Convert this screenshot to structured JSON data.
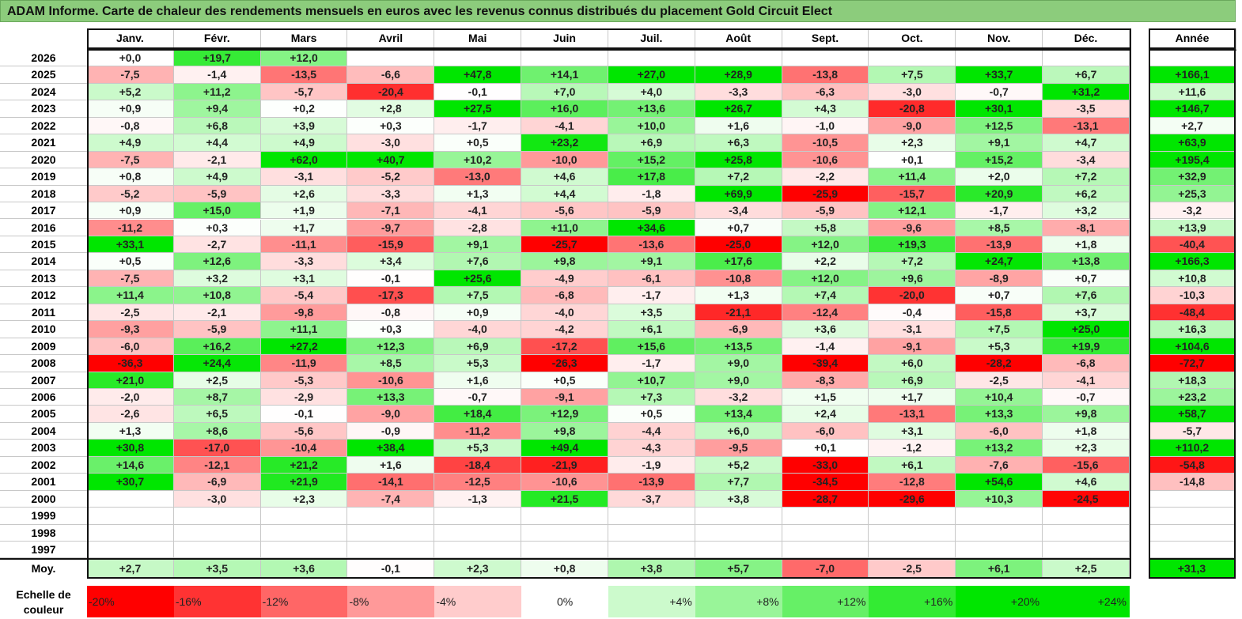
{
  "title": "ADAM Informe. Carte de chaleur des rendements mensuels en euros avec les revenus connus distribués du placement Gold Circuit Elect",
  "months": [
    "Janv.",
    "Févr.",
    "Mars",
    "Avril",
    "Mai",
    "Juin",
    "Juil.",
    "Août",
    "Sept.",
    "Oct.",
    "Nov.",
    "Déc."
  ],
  "year_header": "Année",
  "avg_label": "Moy.",
  "chart_data": {
    "type": "heatmap",
    "title": "ADAM Informe. Carte de chaleur des rendements mensuels en euros avec les revenus connus distribués du placement Gold Circuit Elect",
    "x_categories": [
      "Janv.",
      "Févr.",
      "Mars",
      "Avril",
      "Mai",
      "Juin",
      "Juil.",
      "Août",
      "Sept.",
      "Oct.",
      "Nov.",
      "Déc."
    ],
    "rows": [
      {
        "year": "2026",
        "m": [
          "+0,0",
          "+19,7",
          "+12,0",
          "",
          "",
          "",
          "",
          "",
          "",
          "",
          "",
          ""
        ],
        "annual": ""
      },
      {
        "year": "2025",
        "m": [
          "-7,5",
          "-1,4",
          "-13,5",
          "-6,6",
          "+47,8",
          "+14,1",
          "+27,0",
          "+28,9",
          "-13,8",
          "+7,5",
          "+33,7",
          "+6,7"
        ],
        "annual": "+166,1"
      },
      {
        "year": "2024",
        "m": [
          "+5,2",
          "+11,2",
          "-5,7",
          "-20,4",
          "-0,1",
          "+7,0",
          "+4,0",
          "-3,3",
          "-6,3",
          "-3,0",
          "-0,7",
          "+31,2"
        ],
        "annual": "+11,6"
      },
      {
        "year": "2023",
        "m": [
          "+0,9",
          "+9,4",
          "+0,2",
          "+2,8",
          "+27,5",
          "+16,0",
          "+13,6",
          "+26,7",
          "+4,3",
          "-20,8",
          "+30,1",
          "-3,5"
        ],
        "annual": "+146,7"
      },
      {
        "year": "2022",
        "m": [
          "-0,8",
          "+6,8",
          "+3,9",
          "+0,3",
          "-1,7",
          "-4,1",
          "+10,0",
          "+1,6",
          "-1,0",
          "-9,0",
          "+12,5",
          "-13,1"
        ],
        "annual": "+2,7"
      },
      {
        "year": "2021",
        "m": [
          "+4,9",
          "+4,4",
          "+4,9",
          "-3,0",
          "+0,5",
          "+23,2",
          "+6,9",
          "+6,3",
          "-10,5",
          "+2,3",
          "+9,1",
          "+4,7"
        ],
        "annual": "+63,9"
      },
      {
        "year": "2020",
        "m": [
          "-7,5",
          "-2,1",
          "+62,0",
          "+40,7",
          "+10,2",
          "-10,0",
          "+15,2",
          "+25,8",
          "-10,6",
          "+0,1",
          "+15,2",
          "-3,4"
        ],
        "annual": "+195,4"
      },
      {
        "year": "2019",
        "m": [
          "+0,8",
          "+4,9",
          "-3,1",
          "-5,2",
          "-13,0",
          "+4,6",
          "+17,8",
          "+7,2",
          "-2,2",
          "+11,4",
          "+2,0",
          "+7,2"
        ],
        "annual": "+32,9"
      },
      {
        "year": "2018",
        "m": [
          "-5,2",
          "-5,9",
          "+2,6",
          "-3,3",
          "+1,3",
          "+4,4",
          "-1,8",
          "+69,9",
          "-25,9",
          "-15,7",
          "+20,9",
          "+6,2"
        ],
        "annual": "+25,3"
      },
      {
        "year": "2017",
        "m": [
          "+0,9",
          "+15,0",
          "+1,9",
          "-7,1",
          "-4,1",
          "-5,6",
          "-5,9",
          "-3,4",
          "-5,9",
          "+12,1",
          "-1,7",
          "+3,2"
        ],
        "annual": "-3,2"
      },
      {
        "year": "2016",
        "m": [
          "-11,2",
          "+0,3",
          "+1,7",
          "-9,7",
          "-2,8",
          "+11,0",
          "+34,6",
          "+0,7",
          "+5,8",
          "-9,6",
          "+8,5",
          "-8,1"
        ],
        "annual": "+13,9"
      },
      {
        "year": "2015",
        "m": [
          "+33,1",
          "-2,7",
          "-11,1",
          "-15,9",
          "+9,1",
          "-25,7",
          "-13,6",
          "-25,0",
          "+12,0",
          "+19,3",
          "-13,9",
          "+1,8"
        ],
        "annual": "-40,4"
      },
      {
        "year": "2014",
        "m": [
          "+0,5",
          "+12,6",
          "-3,3",
          "+3,4",
          "+7,6",
          "+9,8",
          "+9,1",
          "+17,6",
          "+2,2",
          "+7,2",
          "+24,7",
          "+13,8"
        ],
        "annual": "+166,3"
      },
      {
        "year": "2013",
        "m": [
          "-7,5",
          "+3,2",
          "+3,1",
          "-0,1",
          "+25,6",
          "-4,9",
          "-6,1",
          "-10,8",
          "+12,0",
          "+9,6",
          "-8,9",
          "+0,7"
        ],
        "annual": "+10,8"
      },
      {
        "year": "2012",
        "m": [
          "+11,4",
          "+10,8",
          "-5,4",
          "-17,3",
          "+7,5",
          "-6,8",
          "-1,7",
          "+1,3",
          "+7,4",
          "-20,0",
          "+0,7",
          "+7,6"
        ],
        "annual": "-10,3"
      },
      {
        "year": "2011",
        "m": [
          "-2,5",
          "-2,1",
          "-9,8",
          "-0,8",
          "+0,9",
          "-4,0",
          "+3,5",
          "-21,1",
          "-12,4",
          "-0,4",
          "-15,8",
          "+3,7"
        ],
        "annual": "-48,4"
      },
      {
        "year": "2010",
        "m": [
          "-9,3",
          "-5,9",
          "+11,1",
          "+0,3",
          "-4,0",
          "-4,2",
          "+6,1",
          "-6,9",
          "+3,6",
          "-3,1",
          "+7,5",
          "+25,0"
        ],
        "annual": "+16,3"
      },
      {
        "year": "2009",
        "m": [
          "-6,0",
          "+16,2",
          "+27,2",
          "+12,3",
          "+6,9",
          "-17,2",
          "+15,6",
          "+13,5",
          "-1,4",
          "-9,1",
          "+5,3",
          "+19,9"
        ],
        "annual": "+104,6"
      },
      {
        "year": "2008",
        "m": [
          "-36,3",
          "+24,4",
          "-11,9",
          "+8,5",
          "+5,3",
          "-26,3",
          "-1,7",
          "+9,0",
          "-39,4",
          "+6,0",
          "-28,2",
          "-6,8"
        ],
        "annual": "-72,7"
      },
      {
        "year": "2007",
        "m": [
          "+21,0",
          "+2,5",
          "-5,3",
          "-10,6",
          "+1,6",
          "+0,5",
          "+10,7",
          "+9,0",
          "-8,3",
          "+6,9",
          "-2,5",
          "-4,1"
        ],
        "annual": "+18,3"
      },
      {
        "year": "2006",
        "m": [
          "-2,0",
          "+8,7",
          "-2,9",
          "+13,3",
          "-0,7",
          "-9,1",
          "+7,3",
          "-3,2",
          "+1,5",
          "+1,7",
          "+10,4",
          "-0,7"
        ],
        "annual": "+23,2"
      },
      {
        "year": "2005",
        "m": [
          "-2,6",
          "+6,5",
          "-0,1",
          "-9,0",
          "+18,4",
          "+12,9",
          "+0,5",
          "+13,4",
          "+2,4",
          "-13,1",
          "+13,3",
          "+9,8"
        ],
        "annual": "+58,7"
      },
      {
        "year": "2004",
        "m": [
          "+1,3",
          "+8,6",
          "-5,6",
          "-0,9",
          "-11,2",
          "+9,8",
          "-4,4",
          "+6,0",
          "-6,0",
          "+3,1",
          "-6,0",
          "+1,8"
        ],
        "annual": "-5,7"
      },
      {
        "year": "2003",
        "m": [
          "+30,8",
          "-17,0",
          "-10,4",
          "+38,4",
          "+5,3",
          "+49,4",
          "-4,3",
          "-9,5",
          "+0,1",
          "-1,2",
          "+13,2",
          "+2,3"
        ],
        "annual": "+110,2"
      },
      {
        "year": "2002",
        "m": [
          "+14,6",
          "-12,1",
          "+21,2",
          "+1,6",
          "-18,4",
          "-21,9",
          "-1,9",
          "+5,2",
          "-33,0",
          "+6,1",
          "-7,6",
          "-15,6"
        ],
        "annual": "-54,8"
      },
      {
        "year": "2001",
        "m": [
          "+30,7",
          "-6,9",
          "+21,9",
          "-14,1",
          "-12,5",
          "-10,6",
          "-13,9",
          "+7,7",
          "-34,5",
          "-12,8",
          "+54,6",
          "+4,6"
        ],
        "annual": "-14,8"
      },
      {
        "year": "2000",
        "m": [
          "",
          "-3,0",
          "+2,3",
          "-7,4",
          "-1,3",
          "+21,5",
          "-3,7",
          "+3,8",
          "-28,7",
          "-29,6",
          "+10,3",
          "-24,5"
        ],
        "annual": ""
      },
      {
        "year": "1999",
        "m": [
          "",
          "",
          "",
          "",
          "",
          "",
          "",
          "",
          "",
          "",
          "",
          ""
        ],
        "annual": ""
      },
      {
        "year": "1998",
        "m": [
          "",
          "",
          "",
          "",
          "",
          "",
          "",
          "",
          "",
          "",
          "",
          ""
        ],
        "annual": ""
      },
      {
        "year": "1997",
        "m": [
          "",
          "",
          "",
          "",
          "",
          "",
          "",
          "",
          "",
          "",
          "",
          ""
        ],
        "annual": ""
      }
    ],
    "averages": [
      "+2,7",
      "+3,5",
      "+3,6",
      "-0,1",
      "+2,3",
      "+0,8",
      "+3,8",
      "+5,7",
      "-7,0",
      "-2,5",
      "+6,1",
      "+2,5"
    ],
    "average_annual": "+31,3",
    "color_scale": {
      "label": "Echelle de couleur",
      "stops": [
        "-20%",
        "-16%",
        "-12%",
        "-8%",
        "-4%",
        "0%",
        "+4%",
        "+8%",
        "+12%",
        "+16%",
        "+20%",
        "+24%"
      ],
      "stop_values": [
        -20,
        -16,
        -12,
        -8,
        -4,
        0,
        4,
        8,
        12,
        16,
        20,
        24
      ],
      "negative_color": "#ff0000",
      "positive_color": "#00e000",
      "neutral_color": "#ffffff"
    }
  }
}
